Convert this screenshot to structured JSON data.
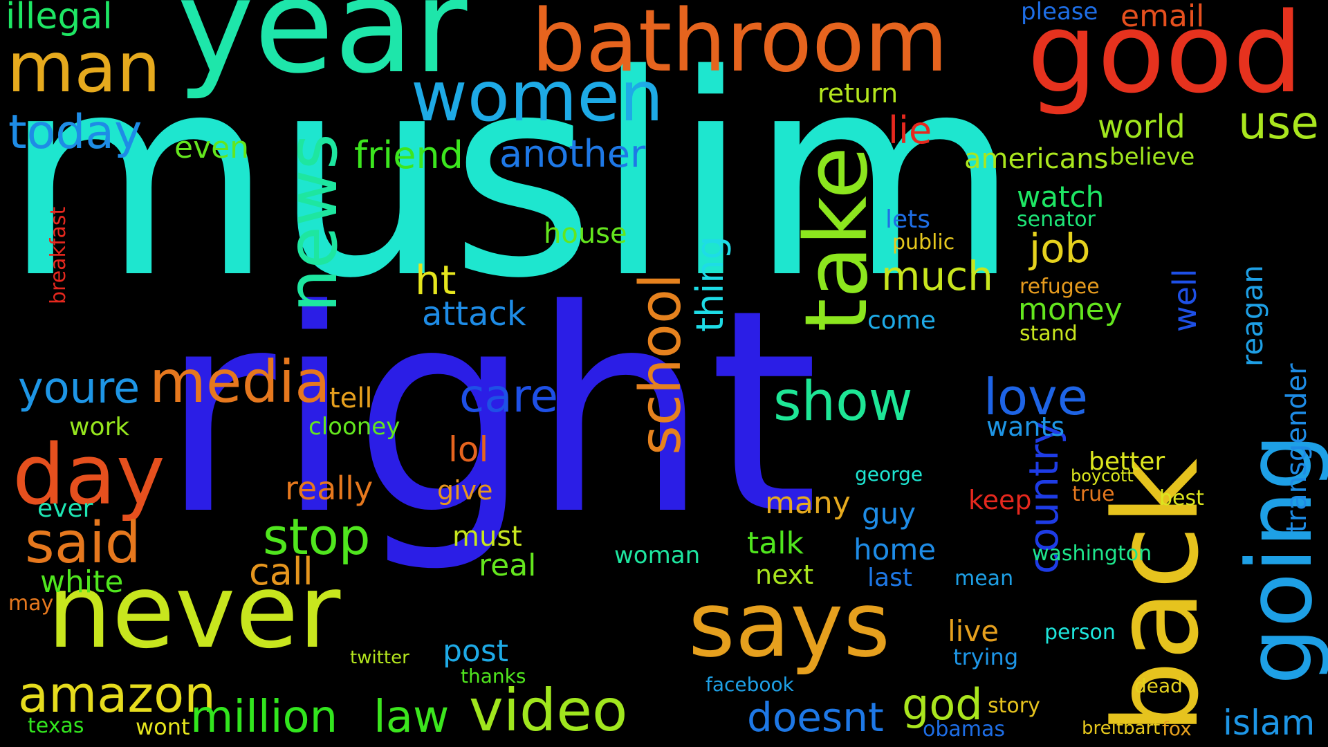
{
  "title": "",
  "words": [
    {
      "text": "muslim",
      "color": "#1ee6cf"
    },
    {
      "text": "right",
      "color": "#2b1ee6"
    },
    {
      "text": "year",
      "color": "#1ee6aa"
    },
    {
      "text": "bathroom",
      "color": "#e6641e"
    },
    {
      "text": "good",
      "color": "#e6321e"
    },
    {
      "text": "never",
      "color": "#c8e61e"
    },
    {
      "text": "says",
      "color": "#e6a01e"
    },
    {
      "text": "back",
      "color": "#e6c31e"
    },
    {
      "text": "going",
      "color": "#1ea0e6"
    },
    {
      "text": "women",
      "color": "#1eaae6"
    },
    {
      "text": "news",
      "color": "#1ee6a0"
    },
    {
      "text": "take",
      "color": "#8ce61e"
    },
    {
      "text": "man",
      "color": "#e6aa1e"
    },
    {
      "text": "today",
      "color": "#1e8ce6"
    },
    {
      "text": "day",
      "color": "#e6501e"
    },
    {
      "text": "media",
      "color": "#e6781e"
    },
    {
      "text": "said",
      "color": "#e6781e"
    },
    {
      "text": "amazon",
      "color": "#e6dc1e"
    },
    {
      "text": "million",
      "color": "#32e61e"
    },
    {
      "text": "law",
      "color": "#3ce61e"
    },
    {
      "text": "video",
      "color": "#a0e61e"
    },
    {
      "text": "school",
      "color": "#e6821e"
    },
    {
      "text": "care",
      "color": "#1e50e6"
    },
    {
      "text": "show",
      "color": "#1ee696"
    },
    {
      "text": "love",
      "color": "#1e64e6"
    },
    {
      "text": "stop",
      "color": "#50e61e"
    },
    {
      "text": "job",
      "color": "#e6d21e"
    },
    {
      "text": "much",
      "color": "#c8e61e"
    },
    {
      "text": "thing",
      "color": "#1edce6"
    },
    {
      "text": "friend",
      "color": "#3ce61e"
    },
    {
      "text": "another",
      "color": "#1e78e6"
    },
    {
      "text": "ht",
      "color": "#e6e61e"
    },
    {
      "text": "youre",
      "color": "#1e96e6"
    },
    {
      "text": "doesnt",
      "color": "#1e78e6"
    },
    {
      "text": "god",
      "color": "#aae61e"
    },
    {
      "text": "use",
      "color": "#aae61e"
    },
    {
      "text": "world",
      "color": "#a0e61e"
    },
    {
      "text": "lie",
      "color": "#e6281e"
    },
    {
      "text": "country",
      "color": "#1e3ce6"
    },
    {
      "text": "islam",
      "color": "#1e96e6"
    },
    {
      "text": "transgender",
      "color": "#1e8ce6"
    },
    {
      "text": "reagan",
      "color": "#1ea0e6"
    },
    {
      "text": "well",
      "color": "#1e50e6"
    },
    {
      "text": "attack",
      "color": "#1e8ce6"
    },
    {
      "text": "even",
      "color": "#64e61e"
    },
    {
      "text": "illegal",
      "color": "#1ee664"
    },
    {
      "text": "email",
      "color": "#e6501e"
    },
    {
      "text": "please",
      "color": "#1e6ee6"
    },
    {
      "text": "americans",
      "color": "#aae61e"
    },
    {
      "text": "believe",
      "color": "#a0e61e"
    },
    {
      "text": "watch",
      "color": "#1ee664"
    },
    {
      "text": "money",
      "color": "#64e61e"
    },
    {
      "text": "white",
      "color": "#50e61e"
    },
    {
      "text": "call",
      "color": "#e6961e"
    },
    {
      "text": "really",
      "color": "#e6781e"
    },
    {
      "text": "post",
      "color": "#1eaae6"
    },
    {
      "text": "live",
      "color": "#e6a01e"
    },
    {
      "text": "come",
      "color": "#1eaae6"
    },
    {
      "text": "lol",
      "color": "#e6641e"
    },
    {
      "text": "give",
      "color": "#e6961e"
    },
    {
      "text": "must",
      "color": "#c8e61e"
    },
    {
      "text": "real",
      "color": "#64e61e"
    },
    {
      "text": "clooney",
      "color": "#64e61e"
    },
    {
      "text": "tell",
      "color": "#e6a01e"
    },
    {
      "text": "work",
      "color": "#96e61e"
    },
    {
      "text": "better",
      "color": "#dce61e"
    },
    {
      "text": "many",
      "color": "#e6aa1e"
    },
    {
      "text": "talk",
      "color": "#50e61e"
    },
    {
      "text": "home",
      "color": "#1e8ce6"
    },
    {
      "text": "last",
      "color": "#1e78e6"
    },
    {
      "text": "next",
      "color": "#aae61e"
    },
    {
      "text": "guy",
      "color": "#1e8ce6"
    },
    {
      "text": "keep",
      "color": "#e6281e"
    },
    {
      "text": "wants",
      "color": "#1e96e6"
    },
    {
      "text": "return",
      "color": "#b4e61e"
    },
    {
      "text": "lets",
      "color": "#1e6ee6"
    },
    {
      "text": "public",
      "color": "#e6c81e"
    },
    {
      "text": "house",
      "color": "#64e61e"
    },
    {
      "text": "senator",
      "color": "#1ee678"
    },
    {
      "text": "refugee",
      "color": "#e69b1e"
    },
    {
      "text": "stand",
      "color": "#c8e61e"
    },
    {
      "text": "woman",
      "color": "#1ee6a0"
    },
    {
      "text": "texas",
      "color": "#32e61e"
    },
    {
      "text": "wont",
      "color": "#e6e61e"
    },
    {
      "text": "ever",
      "color": "#1ee6b4"
    },
    {
      "text": "may",
      "color": "#e6781e"
    },
    {
      "text": "breakfast",
      "color": "#e6281e"
    },
    {
      "text": "fox",
      "color": "#e6a01e"
    },
    {
      "text": "breitbart",
      "color": "#e6c81e"
    },
    {
      "text": "obamas",
      "color": "#1e6ee6"
    },
    {
      "text": "facebook",
      "color": "#1ea0e6"
    },
    {
      "text": "thanks",
      "color": "#50e61e"
    },
    {
      "text": "twitter",
      "color": "#b4e61e"
    },
    {
      "text": "trying",
      "color": "#1e96e6"
    },
    {
      "text": "person",
      "color": "#1ee6dc"
    },
    {
      "text": "washington",
      "color": "#1ee68c"
    },
    {
      "text": "mean",
      "color": "#1ea0e6"
    },
    {
      "text": "story",
      "color": "#e6c31e"
    },
    {
      "text": "dead",
      "color": "#e6d21e"
    },
    {
      "text": "best",
      "color": "#dce61e"
    },
    {
      "text": "true",
      "color": "#e6781e"
    },
    {
      "text": "boycott",
      "color": "#dce61e"
    },
    {
      "text": "george",
      "color": "#1ee6d2"
    },
    {
      "text": "school",
      "color": "#e6821e"
    }
  ]
}
